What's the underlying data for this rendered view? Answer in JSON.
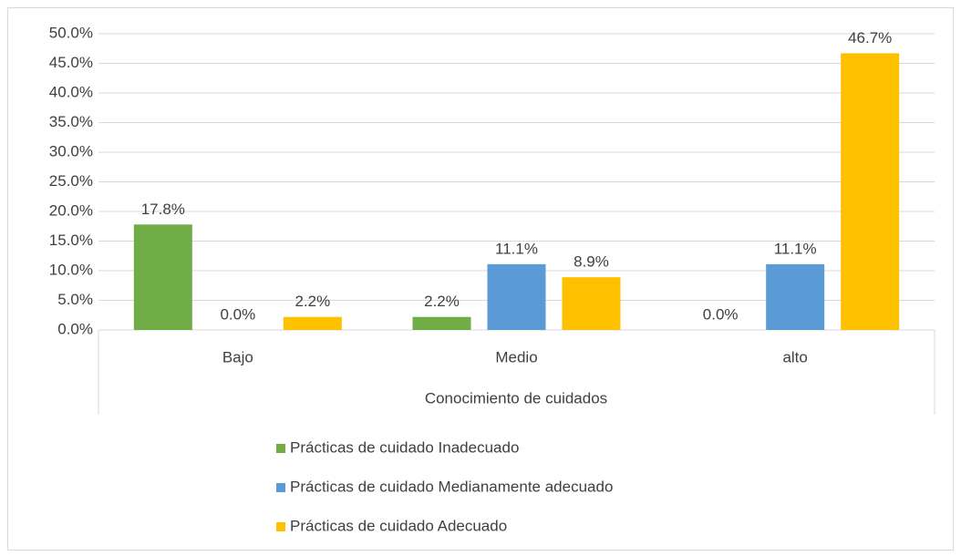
{
  "chart_data": {
    "type": "bar",
    "x_label": "Conocimiento de cuidados",
    "categories": [
      "Bajo",
      "Medio",
      "alto"
    ],
    "series": [
      {
        "name": "Prácticas de cuidado Inadecuado",
        "color": "#70ad47",
        "values": [
          17.8,
          2.2,
          0.0
        ],
        "value_labels": [
          "17.8%",
          "2.2%",
          "0.0%"
        ]
      },
      {
        "name": "Prácticas de cuidado Medianamente adecuado",
        "color": "#5b9bd5",
        "values": [
          0.0,
          11.1,
          11.1
        ],
        "value_labels": [
          "0.0%",
          "11.1%",
          "11.1%"
        ]
      },
      {
        "name": "Prácticas de cuidado Adecuado",
        "color": "#ffc000",
        "values": [
          2.2,
          8.9,
          46.7
        ],
        "value_labels": [
          "2.2%",
          "8.9%",
          "46.7%"
        ]
      }
    ],
    "ylim": [
      0,
      50
    ],
    "yticks": [
      {
        "value": 0,
        "label": "0.0%"
      },
      {
        "value": 5,
        "label": "5.0%"
      },
      {
        "value": 10,
        "label": "10.0%"
      },
      {
        "value": 15,
        "label": "15.0%"
      },
      {
        "value": 20,
        "label": "20.0%"
      },
      {
        "value": 25,
        "label": "25.0%"
      },
      {
        "value": 30,
        "label": "30.0%"
      },
      {
        "value": 35,
        "label": "35.0%"
      },
      {
        "value": 40,
        "label": "40.0%"
      },
      {
        "value": 45,
        "label": "45.0%"
      },
      {
        "value": 50,
        "label": "50.0%"
      }
    ],
    "grid": true,
    "legend": "bottom"
  }
}
